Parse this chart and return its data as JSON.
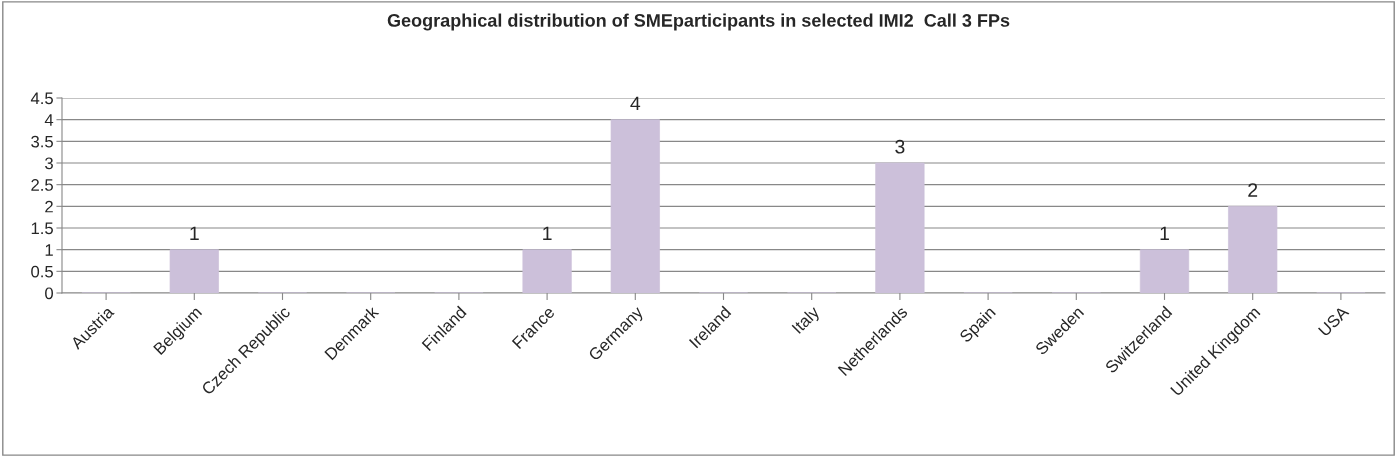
{
  "chart_data": {
    "type": "bar",
    "title": "Geographical distribution of SMEparticipants in selected IMI2  Call 3 FPs",
    "categories": [
      "Austria",
      "Belgium",
      "Czech Republic",
      "Denmark",
      "Finland",
      "France",
      "Germany",
      "Ireland",
      "Italy",
      "Netherlands",
      "Spain",
      "Sweden",
      "Switzerland",
      "United Kingdom",
      "USA"
    ],
    "values": [
      0,
      1,
      0,
      0,
      0,
      1,
      4,
      0,
      0,
      3,
      0,
      0,
      1,
      2,
      0
    ],
    "value_labels": [
      null,
      "1",
      null,
      null,
      null,
      "1",
      "4",
      null,
      null,
      "3",
      null,
      null,
      "1",
      "2",
      null
    ],
    "color": "#ccc0da",
    "ylim": [
      0,
      4.5
    ],
    "yticks": [
      0,
      0.5,
      1,
      1.5,
      2,
      2.5,
      3,
      3.5,
      4,
      4.5
    ],
    "grid": "y",
    "legend": false
  }
}
